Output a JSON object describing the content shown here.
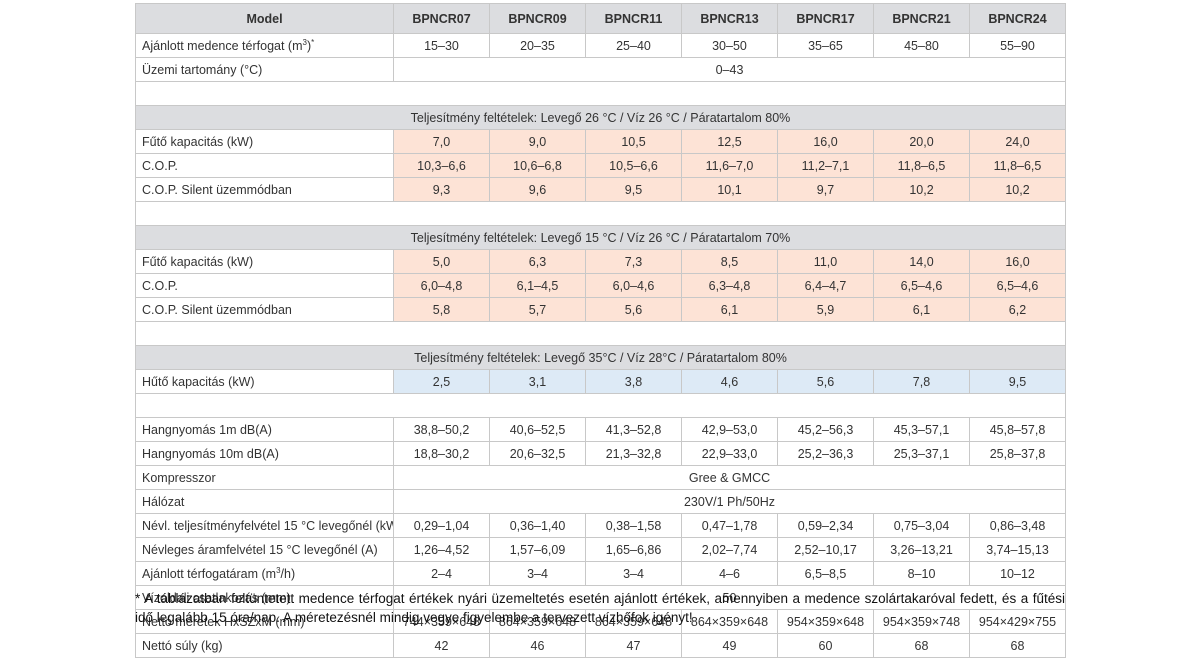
{
  "header": {
    "model_label": "Model",
    "models": [
      "BPNCR07",
      "BPNCR09",
      "BPNCR11",
      "BPNCR13",
      "BPNCR17",
      "BPNCR21",
      "BPNCR24"
    ]
  },
  "general_rows": [
    {
      "label_html": "Ajánlott medence térfogat (m<sup>3</sup>)<sup>*</sup>",
      "values": [
        "15–30",
        "20–35",
        "25–40",
        "30–50",
        "35–65",
        "45–80",
        "55–90"
      ]
    },
    {
      "label": "Üzemi tartomány (°C)",
      "span_value": "0–43"
    }
  ],
  "sections": [
    {
      "title": "Teljesítmény feltételek: Levegő 26 °C / Víz 26 °C / Páratartalom 80%",
      "tint": "heat",
      "rows": [
        {
          "label": "Fűtő kapacitás (kW)",
          "values": [
            "7,0",
            "9,0",
            "10,5",
            "12,5",
            "16,0",
            "20,0",
            "24,0"
          ]
        },
        {
          "label": "C.O.P.",
          "values": [
            "10,3–6,6",
            "10,6–6,8",
            "10,5–6,6",
            "11,6–7,0",
            "11,2–7,1",
            "11,8–6,5",
            "11,8–6,5"
          ]
        },
        {
          "label": "C.O.P. Silent üzemmódban",
          "values": [
            "9,3",
            "9,6",
            "9,5",
            "10,1",
            "9,7",
            "10,2",
            "10,2"
          ]
        }
      ]
    },
    {
      "title": "Teljesítmény feltételek: Levegő 15 °C / Víz 26 °C / Páratartalom 70%",
      "tint": "heat",
      "rows": [
        {
          "label": "Fűtő kapacitás (kW)",
          "values": [
            "5,0",
            "6,3",
            "7,3",
            "8,5",
            "11,0",
            "14,0",
            "16,0"
          ]
        },
        {
          "label": "C.O.P.",
          "values": [
            "6,0–4,8",
            "6,1–4,5",
            "6,0–4,6",
            "6,3–4,8",
            "6,4–4,7",
            "6,5–4,6",
            "6,5–4,6"
          ]
        },
        {
          "label": "C.O.P. Silent üzemmódban",
          "values": [
            "5,8",
            "5,7",
            "5,6",
            "6,1",
            "5,9",
            "6,1",
            "6,2"
          ]
        }
      ]
    },
    {
      "title": "Teljesítmény feltételek: Levegő 35°C / Víz 28°C / Páratartalom 80%",
      "tint": "cool",
      "rows": [
        {
          "label": "Hűtő kapacitás (kW)",
          "values": [
            "2,5",
            "3,1",
            "3,8",
            "4,6",
            "5,6",
            "7,8",
            "9,5"
          ]
        }
      ]
    }
  ],
  "spec_rows": [
    {
      "label": "Hangnyomás 1m dB(A)",
      "values": [
        "38,8–50,2",
        "40,6–52,5",
        "41,3–52,8",
        "42,9–53,0",
        "45,2–56,3",
        "45,3–57,1",
        "45,8–57,8"
      ]
    },
    {
      "label": "Hangnyomás 10m dB(A)",
      "values": [
        "18,8–30,2",
        "20,6–32,5",
        "21,3–32,8",
        "22,9–33,0",
        "25,2–36,3",
        "25,3–37,1",
        "25,8–37,8"
      ]
    },
    {
      "label": "Kompresszor",
      "span_value": "Gree & GMCC"
    },
    {
      "label": "Hálózat",
      "span_value": "230V/1 Ph/50Hz"
    },
    {
      "label": "Névl. teljesítményfelvétel 15 °C levegőnél (kW)",
      "values": [
        "0,29–1,04",
        "0,36–1,40",
        "0,38–1,58",
        "0,47–1,78",
        "0,59–2,34",
        "0,75–3,04",
        "0,86–3,48"
      ]
    },
    {
      "label": "Névleges áramfelvétel 15 °C levegőnél (A)",
      "values": [
        "1,26–4,52",
        "1,57–6,09",
        "1,65–6,86",
        "2,02–7,74",
        "2,52–10,17",
        "3,26–13,21",
        "3,74–15,13"
      ]
    },
    {
      "label_html": "Ajánlott térfogatáram (m<sup>3</sup>/h)",
      "values": [
        "2–4",
        "3–4",
        "3–4",
        "4–6",
        "6,5–8,5",
        "8–10",
        "10–12"
      ]
    },
    {
      "label": "Vízoldali csatlakozás (mm)",
      "span_value": "50"
    },
    {
      "label": "Nettó méretek HxSZxM (mm)",
      "values": [
        "744×359×648",
        "864×359×648",
        "864×359×648",
        "864×359×648",
        "954×359×648",
        "954×359×748",
        "954×429×755"
      ]
    },
    {
      "label": "Nettó súly (kg)",
      "values": [
        "42",
        "46",
        "47",
        "49",
        "60",
        "68",
        "68"
      ]
    }
  ],
  "footnote": "* A táblázatban feltüntetett medence térfogat értékek nyári üzemeltetés esetén ajánlott értékek, amennyiben a medence szolártakaróval fedett, és a fűtési idő legalább 15 óra/nap. A méretezésnél mindig vegye figyelembe a tervezett vízhőfok igényt!"
}
